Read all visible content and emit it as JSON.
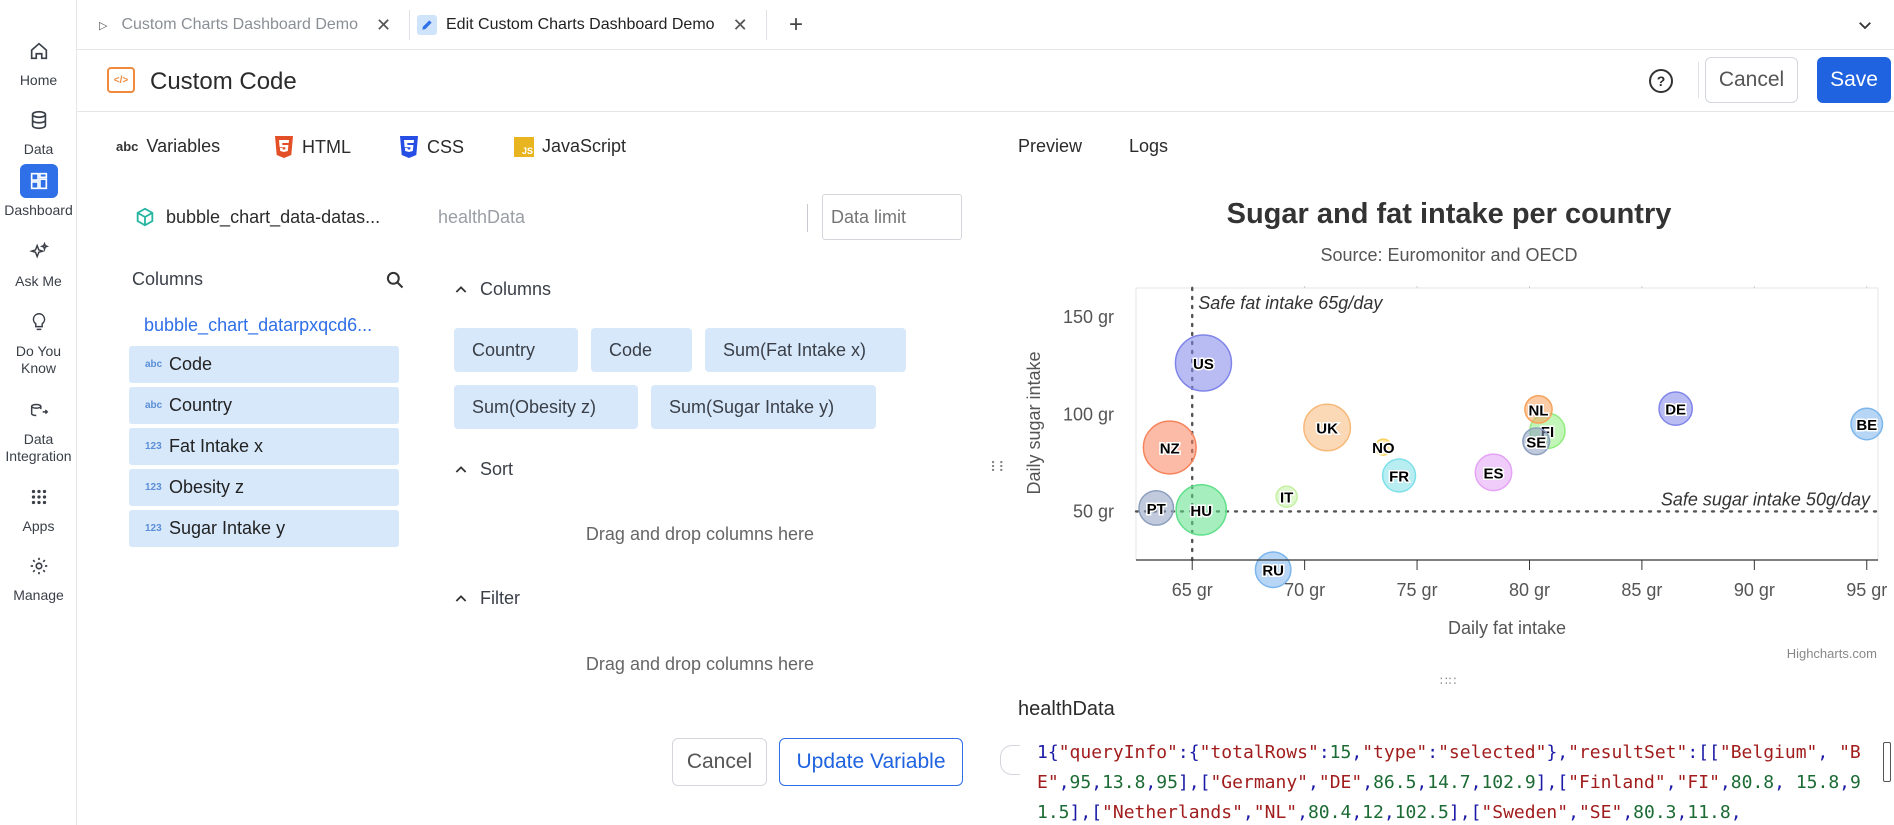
{
  "nav": {
    "items": [
      {
        "label": "Home",
        "icon": "home-icon"
      },
      {
        "label": "Data",
        "icon": "database-icon"
      },
      {
        "label": "Dashboard",
        "icon": "dashboard-icon"
      },
      {
        "label": "Ask Me",
        "icon": "sparkle-icon"
      },
      {
        "label": "Do You Know",
        "icon": "lightbulb-icon"
      },
      {
        "label": "Data Integration",
        "icon": "integration-icon"
      },
      {
        "label": "Apps",
        "icon": "apps-grid-icon"
      },
      {
        "label": "Manage",
        "icon": "gear-icon"
      }
    ],
    "active": "Dashboard",
    "accent": "#2f6fe8"
  },
  "tabs": [
    {
      "label": "Custom Charts Dashboard Demo",
      "icon": "play-icon",
      "active": false
    },
    {
      "label": "Edit Custom Charts Dashboard Demo",
      "icon": "pencil-icon",
      "active": true
    }
  ],
  "header": {
    "title": "Custom Code",
    "help_icon": "help-icon",
    "cancel_label": "Cancel",
    "save_label": "Save"
  },
  "editor_tabs": [
    "Variables",
    "HTML",
    "CSS",
    "JavaScript"
  ],
  "preview_tabs": [
    "Preview",
    "Logs"
  ],
  "dataset": {
    "name": "bubble_chart_data-datas...",
    "variable_name": "healthData",
    "data_limit_placeholder": "Data limit"
  },
  "columns_panel": {
    "title": "Columns",
    "table_name": "bubble_chart_datarpxqcd6...",
    "items": [
      {
        "label": "Code",
        "type": "abc"
      },
      {
        "label": "Country",
        "type": "abc"
      },
      {
        "label": "Fat Intake x",
        "type": "123"
      },
      {
        "label": "Obesity z",
        "type": "123"
      },
      {
        "label": "Sugar Intake y",
        "type": "123"
      }
    ]
  },
  "query": {
    "columns_title": "Columns",
    "chips": [
      "Country",
      "Code",
      "Sum(Fat Intake x)",
      "Sum(Obesity z)",
      "Sum(Sugar Intake y)"
    ],
    "sort_title": "Sort",
    "filter_title": "Filter",
    "dnd_text": "Drag and drop columns here",
    "cancel_label": "Cancel",
    "update_label": "Update Variable"
  },
  "chart_data": {
    "type": "scatter",
    "title": "Sugar and fat intake per country",
    "subtitle": "Source: Euromonitor and OECD",
    "xlabel": "Daily fat intake",
    "ylabel": "Daily sugar intake",
    "xlim": [
      62.5,
      95.5
    ],
    "ylim": [
      25,
      165
    ],
    "xticks": [
      "65 gr",
      "70 gr",
      "75 gr",
      "80 gr",
      "85 gr",
      "90 gr",
      "95 gr"
    ],
    "yticks": [
      "50 gr",
      "100 gr",
      "150 gr"
    ],
    "credits": "Highcharts.com",
    "plot_lines": [
      {
        "axis": "x",
        "value": 65,
        "label": "Safe fat intake 65g/day"
      },
      {
        "axis": "y",
        "value": 50,
        "label": "Safe sugar intake 50g/day"
      }
    ],
    "points": [
      {
        "code": "BE",
        "x": 95,
        "y": 95,
        "z": 13.8,
        "color": "#7cb5ec"
      },
      {
        "code": "DE",
        "x": 86.5,
        "y": 102.9,
        "z": 14.7,
        "color": "#8085e9"
      },
      {
        "code": "FI",
        "x": 80.8,
        "y": 91.5,
        "z": 15.8,
        "color": "#90ed7d"
      },
      {
        "code": "NL",
        "x": 80.4,
        "y": 102.5,
        "z": 12,
        "color": "#f7a35c"
      },
      {
        "code": "SE",
        "x": 80.3,
        "y": 86.1,
        "z": 11.8,
        "color": "#8d9fbf"
      },
      {
        "code": "ES",
        "x": 78.4,
        "y": 70.1,
        "z": 16.6,
        "color": "#e4a3f5"
      },
      {
        "code": "FR",
        "x": 74.2,
        "y": 68.5,
        "z": 14.5,
        "color": "#7ee0e8"
      },
      {
        "code": "NO",
        "x": 73.5,
        "y": 83.1,
        "z": 10,
        "color": "#f7d25c"
      },
      {
        "code": "UK",
        "x": 71,
        "y": 93.2,
        "z": 24.7,
        "color": "#f7b97a"
      },
      {
        "code": "IT",
        "x": 69.2,
        "y": 57.6,
        "z": 10.4,
        "color": "#c5f0a4"
      },
      {
        "code": "RU",
        "x": 68.6,
        "y": 20,
        "z": 16,
        "color": "#7cb5ec"
      },
      {
        "code": "US",
        "x": 65.5,
        "y": 126.4,
        "z": 35.3,
        "color": "#8085e9"
      },
      {
        "code": "HU",
        "x": 65.4,
        "y": 50.8,
        "z": 28.5,
        "color": "#5fe08a"
      },
      {
        "code": "PT",
        "x": 63.4,
        "y": 51.8,
        "z": 15.4,
        "color": "#8d9fbf"
      },
      {
        "code": "NZ",
        "x": 64,
        "y": 82.9,
        "z": 31.3,
        "color": "#f7835c"
      }
    ]
  },
  "output": {
    "title": "healthData",
    "line_number": "1",
    "json_text": "{\"queryInfo\":{\"totalRows\":15,\"type\":\"selected\"},\"resultSet\":[[\"Belgium\", \"BE\",95,13.8,95],[\"Germany\",\"DE\",86.5,14.7,102.9],[\"Finland\",\"FI\",80.8, 15.8,91.5],[\"Netherlands\",\"NL\",80.4,12,102.5],[\"Sweden\",\"SE\",80.3,11.8,"
  }
}
